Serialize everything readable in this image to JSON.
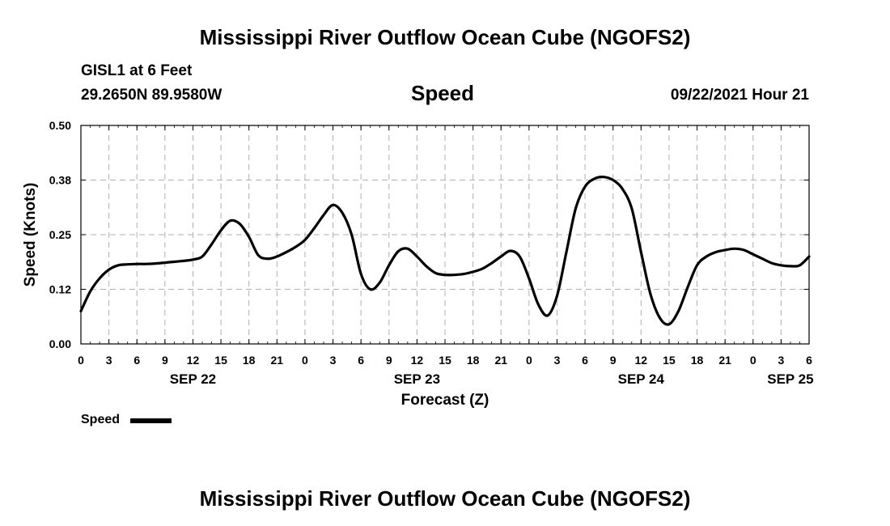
{
  "header": {
    "title_top": "Mississippi River Outflow Ocean Cube (NGOFS2)",
    "station": "GISL1 at 6 Feet",
    "coords": "29.2650N  89.9580W",
    "panel_title": "Speed",
    "datetime": "09/22/2021 Hour 21"
  },
  "footer": {
    "title_bottom": "Mississippi River Outflow Ocean Cube (NGOFS2)"
  },
  "legend": {
    "label": "Speed"
  },
  "chart_data": {
    "type": "line",
    "title": "Speed",
    "xlabel": "Forecast (Z)",
    "ylabel": "Speed (Knots)",
    "xlim": [
      0,
      78
    ],
    "ylim": [
      0,
      0.5
    ],
    "grid": true,
    "y_ticks": [
      0.0,
      0.125,
      0.25,
      0.375,
      0.5
    ],
    "y_tick_labels": [
      "0.00",
      "0.12",
      "0.25",
      "0.38",
      "0.50"
    ],
    "x_ticks": [
      0,
      3,
      6,
      9,
      12,
      15,
      18,
      21,
      24,
      27,
      30,
      33,
      36,
      39,
      42,
      45,
      48,
      51,
      54,
      57,
      60,
      63,
      66,
      69,
      72,
      75,
      78
    ],
    "x_tick_labels": [
      "0",
      "3",
      "6",
      "9",
      "12",
      "15",
      "18",
      "21",
      "0",
      "3",
      "6",
      "9",
      "12",
      "15",
      "18",
      "21",
      "0",
      "3",
      "6",
      "9",
      "12",
      "15",
      "18",
      "21",
      "0",
      "3",
      "6"
    ],
    "date_labels": [
      {
        "x": 12,
        "label": "SEP 22"
      },
      {
        "x": 36,
        "label": "SEP 23"
      },
      {
        "x": 60,
        "label": "SEP 24"
      },
      {
        "x": 76,
        "label": "SEP 25"
      }
    ],
    "series": [
      {
        "name": "Speed",
        "x": [
          0,
          1,
          2,
          3,
          4,
          5,
          6,
          7,
          8,
          9,
          10,
          11,
          12,
          13,
          14,
          15,
          16,
          17,
          18,
          19,
          20,
          21,
          22,
          23,
          24,
          25,
          26,
          27,
          28,
          29,
          30,
          31,
          32,
          33,
          34,
          35,
          36,
          37,
          38,
          39,
          40,
          41,
          42,
          43,
          44,
          45,
          46,
          47,
          48,
          49,
          50,
          51,
          52,
          53,
          54,
          55,
          56,
          57,
          58,
          59,
          60,
          61,
          62,
          63,
          64,
          65,
          66,
          67,
          68,
          69,
          70,
          71,
          72,
          73,
          74,
          75,
          76,
          77,
          78
        ],
        "values": [
          0.075,
          0.12,
          0.15,
          0.17,
          0.18,
          0.182,
          0.183,
          0.183,
          0.184,
          0.186,
          0.188,
          0.19,
          0.193,
          0.2,
          0.228,
          0.26,
          0.282,
          0.275,
          0.245,
          0.203,
          0.195,
          0.2,
          0.21,
          0.222,
          0.238,
          0.265,
          0.295,
          0.318,
          0.3,
          0.25,
          0.16,
          0.125,
          0.14,
          0.18,
          0.212,
          0.218,
          0.2,
          0.178,
          0.162,
          0.158,
          0.158,
          0.16,
          0.165,
          0.172,
          0.185,
          0.2,
          0.213,
          0.2,
          0.15,
          0.09,
          0.065,
          0.11,
          0.21,
          0.31,
          0.36,
          0.378,
          0.382,
          0.375,
          0.355,
          0.31,
          0.21,
          0.115,
          0.06,
          0.045,
          0.075,
          0.13,
          0.18,
          0.2,
          0.21,
          0.215,
          0.218,
          0.215,
          0.205,
          0.195,
          0.185,
          0.18,
          0.178,
          0.18,
          0.2
        ]
      }
    ]
  }
}
